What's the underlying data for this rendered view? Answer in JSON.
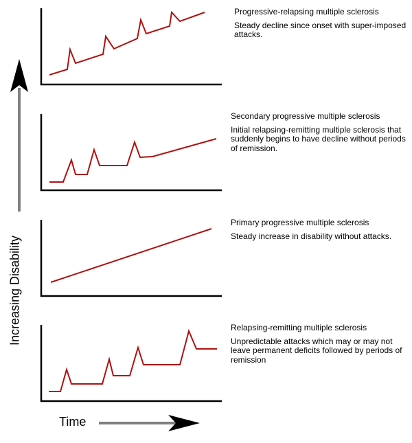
{
  "axes": {
    "y_label": "Increasing Disability",
    "x_label": "Time"
  },
  "colors": {
    "line": "#b01010",
    "axis": "#000000",
    "arrow_shaft": "#808080",
    "arrow_head": "#000000"
  },
  "panels": [
    {
      "title": "Progressive-relapsing multiple sclerosis",
      "description": "Steady decline since onset with super-imposed attacks."
    },
    {
      "title": "Secondary progressive multiple sclerosis",
      "description": "Initial relapsing-remitting multiple sclerosis that suddenly begins to have decline without periods of remission."
    },
    {
      "title": "Primary progressive multiple sclerosis",
      "description": "Steady increase in disability without attacks."
    },
    {
      "title": "Relapsing-remitting multiple sclerosis",
      "description": "Unpredictable attacks which may or may not leave permanent deficits followed by periods of remission"
    }
  ]
}
